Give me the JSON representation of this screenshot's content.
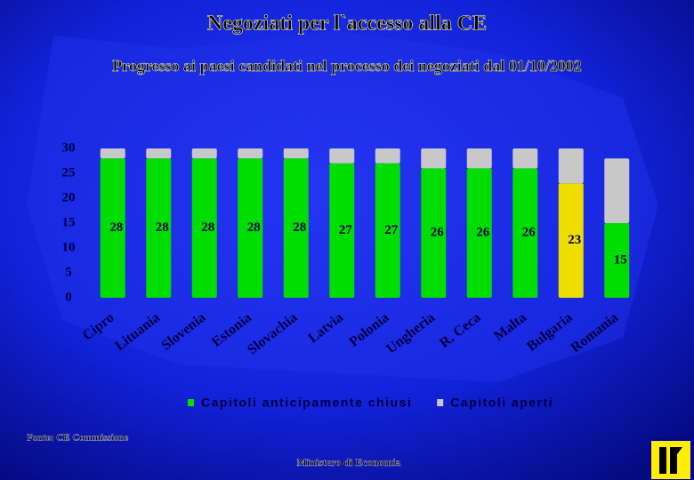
{
  "chart_data": {
    "type": "stacked-bar",
    "title": "Negoziati per l`accesso alla CE",
    "subtitle": "Progresso ai paesi candidati nel processo dei negoziati dal 01/10/2002",
    "categories": [
      "Cipro",
      "Lituania",
      "Slovenia",
      "Estonia",
      "Slovachia",
      "Latvia",
      "Polonia",
      "Ungheria",
      "R. Ceca",
      "Malta",
      "Bulgaria",
      "Romania"
    ],
    "series": [
      {
        "name": "Capitoli anticipamente chiusi",
        "color": "#00dd00",
        "colors": [
          "#00dd00",
          "#00dd00",
          "#00dd00",
          "#00dd00",
          "#00dd00",
          "#00dd00",
          "#00dd00",
          "#00dd00",
          "#00dd00",
          "#00dd00",
          "#eedd00",
          "#00dd00"
        ],
        "values": [
          28,
          28,
          28,
          28,
          28,
          27,
          27,
          26,
          26,
          26,
          23,
          15
        ],
        "show_labels": true
      },
      {
        "name": "Capitoli aperti",
        "color": "#c8c8c8",
        "values": [
          2,
          2,
          2,
          2,
          2,
          3,
          3,
          4,
          4,
          4,
          7,
          13
        ],
        "show_labels": false
      }
    ],
    "ylim": [
      0,
      30
    ],
    "yticks": [
      0,
      5,
      10,
      15,
      20,
      25,
      30
    ],
    "grid": false,
    "legend": "bottom",
    "source": "Fonte: CE Commissione",
    "footer": "Ministero di Economia"
  }
}
